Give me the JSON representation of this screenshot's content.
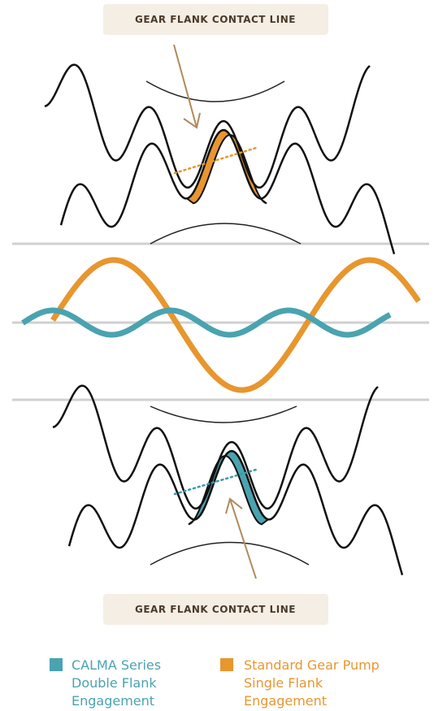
{
  "top_label": "GEAR FLANK  CONTACT LINE",
  "bottom_label": "GEAR  FLANK  CONTACT  LINE",
  "legend": [
    {
      "lines": [
        "CALMA Series",
        "Double Flank",
        "Engagement"
      ]
    },
    {
      "lines": [
        "Standard Gear Pump",
        "Single Flank",
        "Engagement"
      ]
    }
  ]
}
